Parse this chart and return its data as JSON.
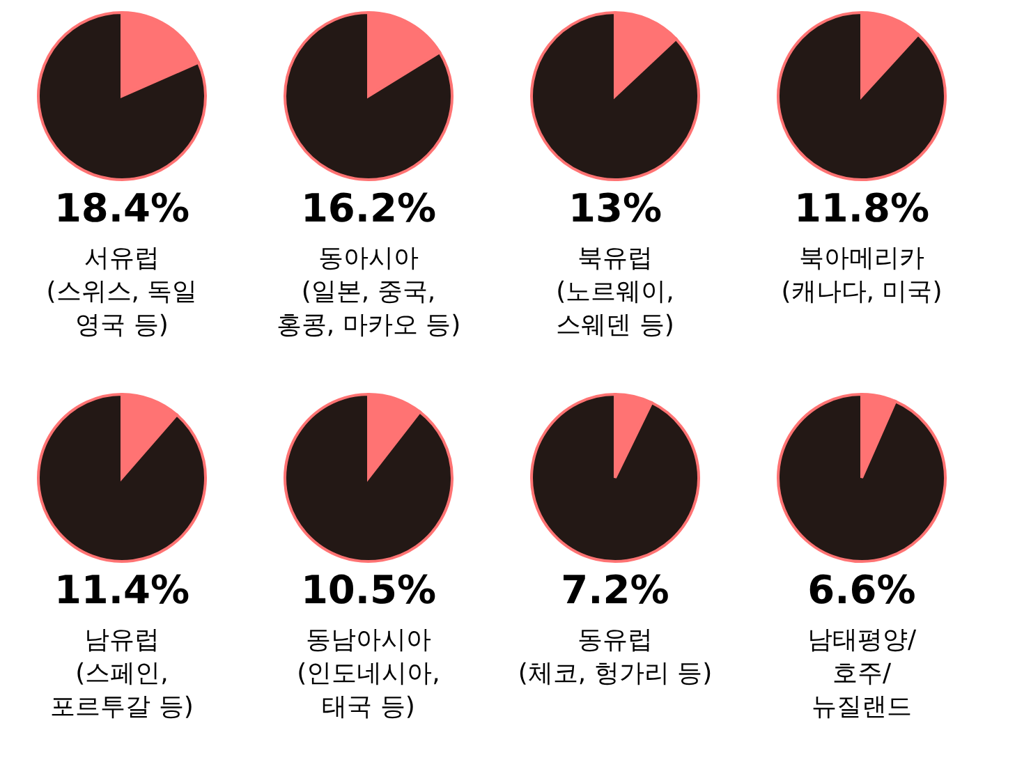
{
  "chart_data": [
    {
      "type": "pie",
      "title": "서유럽\n(스위스, 독일\n영국 등)",
      "categories": [
        null,
        null
      ],
      "values": [
        18.4,
        81.6
      ],
      "colors": [
        "#ff7373",
        "#231815"
      ],
      "annotations": [
        "18.4%"
      ]
    },
    {
      "type": "pie",
      "title": "동아시아\n(일본, 중국,\n홍콩, 마카오 등)",
      "categories": [
        null,
        null
      ],
      "values": [
        16.2,
        83.8
      ],
      "colors": [
        "#ff7373",
        "#231815"
      ],
      "annotations": [
        "16.2%"
      ]
    },
    {
      "type": "pie",
      "title": "북유럽\n(노르웨이,\n스웨덴 등)",
      "categories": [
        null,
        null
      ],
      "values": [
        13,
        87
      ],
      "colors": [
        "#ff7373",
        "#231815"
      ],
      "annotations": [
        "13%"
      ]
    },
    {
      "type": "pie",
      "title": "북아메리카\n(캐나다, 미국)",
      "categories": [
        null,
        null
      ],
      "values": [
        11.8,
        88.2
      ],
      "colors": [
        "#ff7373",
        "#231815"
      ],
      "annotations": [
        "11.8%"
      ]
    },
    {
      "type": "pie",
      "title": "남유럽\n(스페인,\n포르투갈 등)",
      "categories": [
        null,
        null
      ],
      "values": [
        11.4,
        88.6
      ],
      "colors": [
        "#ff7373",
        "#231815"
      ],
      "annotations": [
        "11.4%"
      ]
    },
    {
      "type": "pie",
      "title": "동남아시아\n(인도네시아,\n태국 등)",
      "categories": [
        null,
        null
      ],
      "values": [
        10.5,
        89.5
      ],
      "colors": [
        "#ff7373",
        "#231815"
      ],
      "annotations": [
        "10.5%"
      ]
    },
    {
      "type": "pie",
      "title": "동유럽\n(체코, 헝가리 등)",
      "categories": [
        null,
        null
      ],
      "values": [
        7.2,
        92.8
      ],
      "colors": [
        "#ff7373",
        "#231815"
      ],
      "annotations": [
        "7.2%"
      ]
    },
    {
      "type": "pie",
      "title": "남태평양/\n호주/\n뉴질랜드",
      "categories": [
        null,
        null
      ],
      "values": [
        6.6,
        93.4
      ],
      "colors": [
        "#ff7373",
        "#231815"
      ],
      "annotations": [
        "6.6%"
      ]
    }
  ]
}
